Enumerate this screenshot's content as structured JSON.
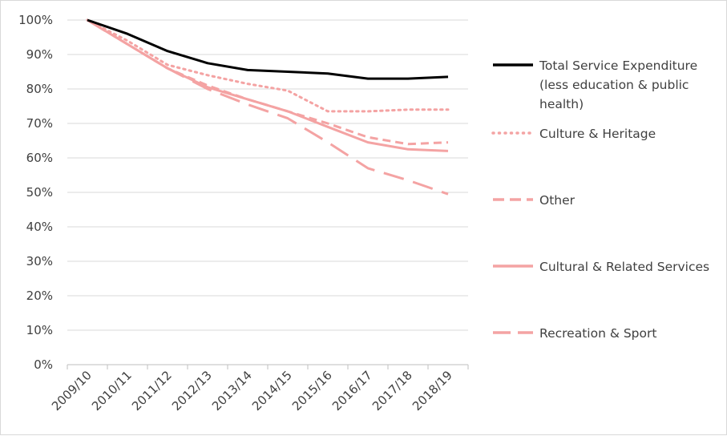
{
  "chart_data": {
    "type": "line",
    "title": "",
    "xlabel": "",
    "ylabel": "",
    "categories": [
      "2009/10",
      "2010/11",
      "2011/12",
      "2012/13",
      "2013/14",
      "2014/15",
      "2015/16",
      "2016/17",
      "2017/18",
      "2018/19"
    ],
    "ylim": [
      0,
      100
    ],
    "y_ticks": [
      "0%",
      "10%",
      "20%",
      "30%",
      "40%",
      "50%",
      "60%",
      "70%",
      "80%",
      "90%",
      "100%"
    ],
    "grid": "horizontal",
    "legend_position": "right",
    "series": [
      {
        "name": "Total Service Expenditure (less education & public health)",
        "legend_lines": [
          "Total Service Expenditure",
          "(less education & public",
          "health)"
        ],
        "color": "#000000",
        "style": "solid",
        "values": [
          100,
          96,
          91,
          87.5,
          85.5,
          85,
          84.5,
          83,
          83,
          83.5
        ]
      },
      {
        "name": "Culture & Heritage",
        "legend_lines": [
          "Culture & Heritage"
        ],
        "color": "#f4a3a3",
        "style": "dotted",
        "values": [
          100,
          94,
          87,
          84,
          81.5,
          79.5,
          73.5,
          73.5,
          74,
          74
        ]
      },
      {
        "name": "Other",
        "legend_lines": [
          "Other"
        ],
        "color": "#f4a3a3",
        "style": "dashed",
        "values": [
          100,
          93,
          86,
          81,
          77,
          73.5,
          70,
          66,
          64,
          64.5
        ]
      },
      {
        "name": "Cultural & Related Services",
        "legend_lines": [
          "Cultural & Related Services"
        ],
        "color": "#f4a3a3",
        "style": "solid",
        "values": [
          100,
          93,
          86,
          80.5,
          77,
          73.5,
          69,
          64.5,
          62.5,
          62
        ]
      },
      {
        "name": "Recreation & Sport",
        "legend_lines": [
          "Recreation & Sport"
        ],
        "color": "#f4a3a3",
        "style": "longdash",
        "values": [
          100,
          93,
          86,
          80,
          75.5,
          71.5,
          64.5,
          57,
          53.5,
          49.5
        ]
      }
    ]
  }
}
